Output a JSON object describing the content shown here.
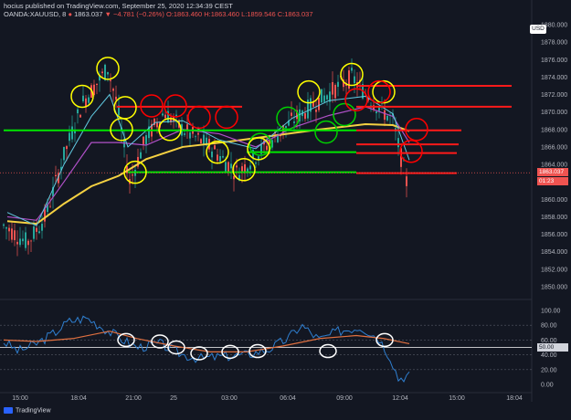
{
  "header": {
    "line1": "hocius published on TradingView.com, September 25, 2020 12:34:39 CEST",
    "symbol": "OANDA:XAUUSD, 8",
    "last": "1863.037",
    "change": "▼ −4.781 (−0.26%)",
    "ohlc": "O:1863.460 H:1863.460 L:1859.546 C:1863.037"
  },
  "axis": {
    "currency": "USD",
    "price_ticks": [
      "1880.000",
      "1878.000",
      "1876.000",
      "1874.000",
      "1872.000",
      "1870.000",
      "1868.000",
      "1866.000",
      "1864.000",
      "1862.000",
      "1860.000",
      "1858.000",
      "1856.000",
      "1854.000",
      "1852.000",
      "1850.000"
    ],
    "osc_ticks": [
      "100.00",
      "80.00",
      "60.00",
      "40.00",
      "20.00",
      "0.00"
    ],
    "time_ticks": [
      "15:00",
      "18:04",
      "21:00",
      "25",
      "03:00",
      "06:04",
      "09:00",
      "12:04",
      "15:00",
      "18:04"
    ],
    "last_price_tag": "1863.037",
    "countdown_tag": "01:23",
    "osc_tag": "50.00"
  },
  "footer": {
    "brand": "TradingView"
  },
  "colors": {
    "bg": "#131722",
    "green_line": "#00e600",
    "red_line": "#ff1a1a",
    "yellow_circle": "#ffff00",
    "red_circle": "#ff0000",
    "green_circle": "#00d000",
    "ma_yellow": "#f5d142",
    "ma_purple": "#b050c8",
    "ma_cyan": "#60c8e0",
    "osc_blue": "#2f7fd0",
    "osc_orange": "#e07040"
  }
}
